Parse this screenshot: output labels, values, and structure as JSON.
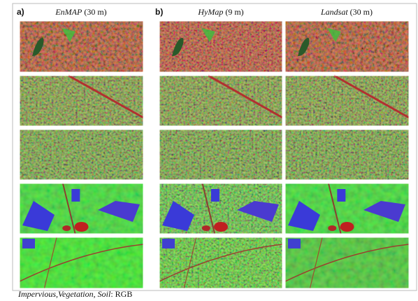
{
  "panels": [
    {
      "label": "a)",
      "columns": [
        {
          "sensor": "EnMAP",
          "resolution": "(30 m)"
        }
      ]
    },
    {
      "label": "b)",
      "columns": [
        {
          "sensor": "HyMap",
          "resolution": "(9 m)"
        },
        {
          "sensor": "Landsat",
          "resolution": "(30 m)"
        }
      ]
    }
  ],
  "caption": {
    "classes": "Impervious,Vegetation, Soil",
    "suffix": ": RGB"
  }
}
